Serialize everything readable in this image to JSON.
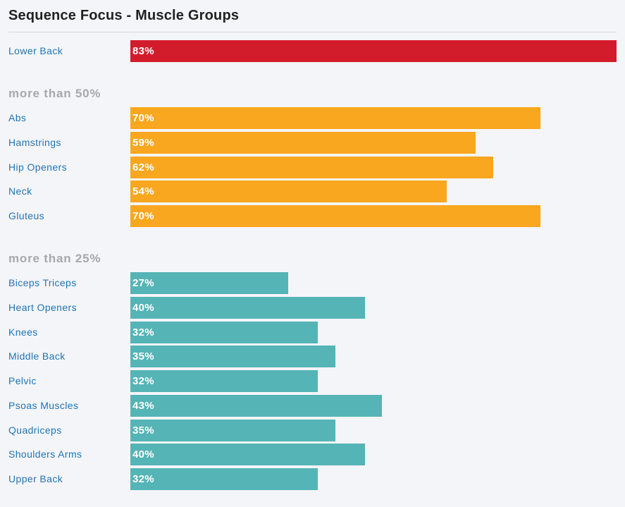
{
  "colors": {
    "high": "#d31c2b",
    "medium": "#f8a71e",
    "low": "#55b4b5"
  },
  "chart_data": {
    "type": "bar",
    "orientation": "horizontal",
    "title": "Sequence Focus - Muscle Groups",
    "xlim": [
      0,
      100
    ],
    "groups": [
      {
        "heading": "",
        "color": "high",
        "items": [
          {
            "label": "Lower Back",
            "value": 83,
            "display": "83%"
          }
        ]
      },
      {
        "heading": "more than 50%",
        "color": "medium",
        "items": [
          {
            "label": "Abs",
            "value": 70,
            "display": "70%"
          },
          {
            "label": "Hamstrings",
            "value": 59,
            "display": "59%"
          },
          {
            "label": "Hip Openers",
            "value": 62,
            "display": "62%"
          },
          {
            "label": "Neck",
            "value": 54,
            "display": "54%"
          },
          {
            "label": "Gluteus",
            "value": 70,
            "display": "70%"
          }
        ]
      },
      {
        "heading": "more than 25%",
        "color": "low",
        "items": [
          {
            "label": "Biceps Triceps",
            "value": 27,
            "display": "27%"
          },
          {
            "label": "Heart Openers",
            "value": 40,
            "display": "40%"
          },
          {
            "label": "Knees",
            "value": 32,
            "display": "32%"
          },
          {
            "label": "Middle Back",
            "value": 35,
            "display": "35%"
          },
          {
            "label": "Pelvic",
            "value": 32,
            "display": "32%"
          },
          {
            "label": "Psoas Muscles",
            "value": 43,
            "display": "43%"
          },
          {
            "label": "Quadriceps",
            "value": 35,
            "display": "35%"
          },
          {
            "label": "Shoulders Arms",
            "value": 40,
            "display": "40%"
          },
          {
            "label": "Upper Back",
            "value": 32,
            "display": "32%"
          }
        ]
      }
    ]
  }
}
